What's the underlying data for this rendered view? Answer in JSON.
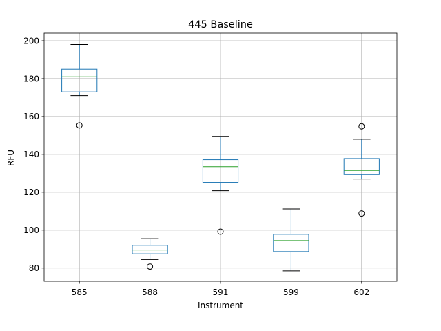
{
  "chart_data": {
    "type": "box",
    "title": "445 Baseline",
    "xlabel": "Instrument",
    "ylabel": "RFU",
    "ylim": [
      73,
      204
    ],
    "yticks": [
      80,
      100,
      120,
      140,
      160,
      180,
      200
    ],
    "grid": true,
    "categories": [
      "585",
      "588",
      "591",
      "599",
      "602"
    ],
    "boxes": [
      {
        "whisker_low": 171,
        "q1": 173,
        "median": 181,
        "q3": 185,
        "whisker_high": 198,
        "outliers": [
          155.3
        ]
      },
      {
        "whisker_low": 84.5,
        "q1": 87.5,
        "median": 89.5,
        "q3": 92,
        "whisker_high": 95.5,
        "outliers": [
          80.8
        ]
      },
      {
        "whisker_low": 120.8,
        "q1": 125.2,
        "median": 133.5,
        "q3": 137.2,
        "whisker_high": 149.5,
        "outliers": [
          99.2
        ]
      },
      {
        "whisker_low": 78.5,
        "q1": 88.7,
        "median": 94.5,
        "q3": 97.8,
        "whisker_high": 111.2,
        "outliers": []
      },
      {
        "whisker_low": 127,
        "q1": 129.3,
        "median": 131.5,
        "q3": 137.8,
        "whisker_high": 148,
        "outliers": [
          154.8,
          108.8
        ]
      }
    ],
    "colors": {
      "box": "#1f77b4",
      "median": "#2ca02c",
      "grid": "#b0b0b0",
      "outlier": "#000000"
    }
  }
}
